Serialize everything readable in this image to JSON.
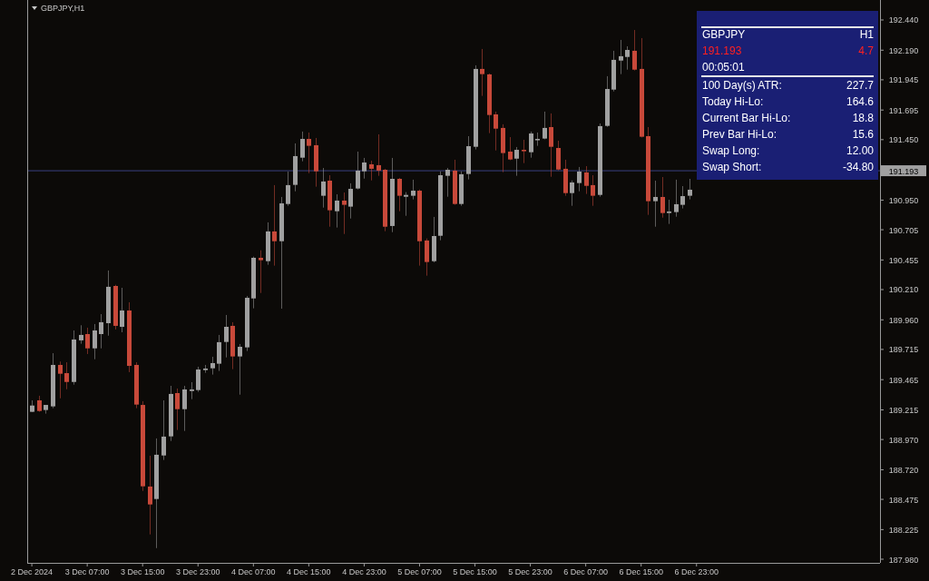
{
  "chart_data": {
    "type": "candlestick",
    "title": "GBPJPY,H1",
    "x": [
      "2024-12-02T23:00",
      "2024-12-03T00:00",
      "2024-12-03T01:00",
      "2024-12-03T02:00",
      "2024-12-03T03:00",
      "2024-12-03T04:00",
      "2024-12-03T05:00",
      "2024-12-03T06:00",
      "2024-12-03T07:00",
      "2024-12-03T08:00",
      "2024-12-03T09:00",
      "2024-12-03T10:00",
      "2024-12-03T11:00",
      "2024-12-03T12:00",
      "2024-12-03T13:00",
      "2024-12-03T14:00",
      "2024-12-03T15:00",
      "2024-12-03T16:00",
      "2024-12-03T17:00",
      "2024-12-03T18:00",
      "2024-12-03T19:00",
      "2024-12-03T20:00",
      "2024-12-03T21:00",
      "2024-12-03T22:00",
      "2024-12-03T23:00",
      "2024-12-04T00:00",
      "2024-12-04T01:00",
      "2024-12-04T02:00",
      "2024-12-04T03:00",
      "2024-12-04T04:00",
      "2024-12-04T05:00",
      "2024-12-04T06:00",
      "2024-12-04T07:00",
      "2024-12-04T08:00",
      "2024-12-04T09:00",
      "2024-12-04T10:00",
      "2024-12-04T11:00",
      "2024-12-04T12:00",
      "2024-12-04T13:00",
      "2024-12-04T14:00",
      "2024-12-04T15:00",
      "2024-12-04T16:00",
      "2024-12-04T17:00",
      "2024-12-04T18:00",
      "2024-12-04T19:00",
      "2024-12-04T20:00",
      "2024-12-04T21:00",
      "2024-12-04T22:00",
      "2024-12-04T23:00",
      "2024-12-05T00:00",
      "2024-12-05T01:00",
      "2024-12-05T02:00",
      "2024-12-05T03:00",
      "2024-12-05T04:00",
      "2024-12-05T05:00",
      "2024-12-05T06:00",
      "2024-12-05T07:00",
      "2024-12-05T08:00",
      "2024-12-05T09:00",
      "2024-12-05T10:00",
      "2024-12-05T11:00",
      "2024-12-05T12:00",
      "2024-12-05T13:00",
      "2024-12-05T14:00",
      "2024-12-05T15:00",
      "2024-12-05T16:00",
      "2024-12-05T17:00",
      "2024-12-05T18:00",
      "2024-12-05T19:00",
      "2024-12-05T20:00",
      "2024-12-05T21:00",
      "2024-12-05T22:00",
      "2024-12-05T23:00",
      "2024-12-06T00:00",
      "2024-12-06T01:00",
      "2024-12-06T02:00",
      "2024-12-06T03:00",
      "2024-12-06T04:00",
      "2024-12-06T05:00",
      "2024-12-06T06:00",
      "2024-12-06T07:00",
      "2024-12-06T08:00",
      "2024-12-06T09:00",
      "2024-12-06T10:00",
      "2024-12-06T11:00",
      "2024-12-06T12:00",
      "2024-12-06T13:00",
      "2024-12-06T14:00",
      "2024-12-06T15:00",
      "2024-12-06T16:00",
      "2024-12-06T17:00",
      "2024-12-06T18:00",
      "2024-12-06T19:00",
      "2024-12-06T20:00",
      "2024-12-06T21:00",
      "2024-12-06T22:00"
    ],
    "ohlc": [
      [
        189.199,
        189.294,
        189.196,
        189.251
      ],
      [
        189.294,
        189.332,
        189.199,
        189.206
      ],
      [
        189.214,
        189.256,
        189.184,
        189.256
      ],
      [
        189.244,
        189.684,
        189.229,
        189.587
      ],
      [
        189.587,
        189.615,
        189.311,
        189.514
      ],
      [
        189.519,
        189.609,
        189.386,
        189.446
      ],
      [
        189.446,
        189.872,
        189.424,
        189.797
      ],
      [
        189.79,
        189.915,
        189.762,
        189.835
      ],
      [
        189.842,
        189.895,
        189.677,
        189.724
      ],
      [
        189.724,
        189.925,
        189.634,
        189.872
      ],
      [
        189.842,
        190.007,
        189.724,
        189.94
      ],
      [
        189.932,
        190.368,
        189.829,
        190.233
      ],
      [
        190.24,
        190.25,
        189.88,
        189.91
      ],
      [
        189.902,
        190.225,
        189.857,
        190.037
      ],
      [
        190.037,
        190.105,
        189.527,
        189.579
      ],
      [
        189.587,
        189.609,
        189.229,
        189.259
      ],
      [
        189.256,
        189.287,
        188.545,
        188.583
      ],
      [
        188.581,
        188.836,
        188.185,
        188.433
      ],
      [
        188.478,
        188.979,
        188.072,
        188.844
      ],
      [
        188.838,
        189.294,
        188.801,
        188.994
      ],
      [
        188.996,
        189.414,
        188.958,
        189.347
      ],
      [
        189.354,
        189.392,
        189.049,
        189.221
      ],
      [
        189.221,
        189.414,
        189.041,
        189.384
      ],
      [
        189.371,
        189.444,
        189.304,
        189.384
      ],
      [
        189.379,
        189.572,
        189.364,
        189.549
      ],
      [
        189.544,
        189.587,
        189.522,
        189.557
      ],
      [
        189.559,
        189.654,
        189.507,
        189.602
      ],
      [
        189.597,
        189.835,
        189.537,
        189.775
      ],
      [
        189.777,
        190.0,
        189.649,
        189.902
      ],
      [
        189.91,
        189.94,
        189.552,
        189.657
      ],
      [
        189.657,
        189.76,
        189.341,
        189.737
      ],
      [
        189.732,
        190.157,
        189.702,
        190.142
      ],
      [
        190.137,
        190.483,
        190.055,
        190.473
      ],
      [
        190.473,
        190.535,
        190.182,
        190.453
      ],
      [
        190.445,
        190.766,
        190.415,
        190.691
      ],
      [
        190.691,
        191.074,
        190.408,
        190.61
      ],
      [
        190.61,
        190.976,
        190.052,
        190.923
      ],
      [
        190.918,
        191.186,
        190.903,
        191.074
      ],
      [
        191.076,
        191.419,
        191.023,
        191.314
      ],
      [
        191.301,
        191.517,
        191.271,
        191.456
      ],
      [
        191.456,
        191.509,
        191.173,
        191.399
      ],
      [
        191.404,
        191.464,
        191.061,
        191.188
      ],
      [
        190.986,
        191.216,
        190.888,
        191.104
      ],
      [
        191.111,
        191.156,
        190.73,
        190.866
      ],
      [
        190.858,
        190.998,
        190.723,
        190.946
      ],
      [
        190.946,
        191.013,
        190.67,
        190.911
      ],
      [
        190.896,
        191.089,
        190.798,
        191.043
      ],
      [
        191.046,
        191.351,
        191.038,
        191.194
      ],
      [
        191.188,
        191.299,
        191.128,
        191.261
      ],
      [
        191.246,
        191.276,
        191.113,
        191.209
      ],
      [
        191.239,
        191.494,
        191.151,
        191.194
      ],
      [
        191.201,
        191.209,
        190.693,
        190.73
      ],
      [
        190.736,
        191.299,
        190.685,
        191.126
      ],
      [
        191.126,
        191.134,
        190.858,
        190.986
      ],
      [
        190.978,
        191.016,
        190.82,
        190.993
      ],
      [
        190.986,
        191.119,
        190.956,
        191.028
      ],
      [
        191.028,
        191.038,
        190.408,
        190.61
      ],
      [
        190.616,
        190.633,
        190.325,
        190.438
      ],
      [
        190.445,
        190.811,
        190.435,
        190.653
      ],
      [
        190.655,
        191.188,
        190.618,
        191.156
      ],
      [
        191.151,
        191.216,
        190.978,
        191.201
      ],
      [
        191.194,
        191.284,
        190.911,
        190.918
      ],
      [
        190.918,
        191.188,
        190.903,
        191.164
      ],
      [
        191.166,
        191.479,
        191.121,
        191.396
      ],
      [
        191.391,
        192.065,
        191.369,
        192.035
      ],
      [
        192.035,
        192.2,
        191.812,
        191.992
      ],
      [
        191.99,
        191.997,
        191.504,
        191.654
      ],
      [
        191.659,
        191.682,
        191.361,
        191.541
      ],
      [
        191.547,
        191.577,
        191.181,
        191.339
      ],
      [
        191.351,
        191.471,
        191.28,
        191.286
      ],
      [
        191.293,
        191.389,
        191.151,
        191.366
      ],
      [
        191.366,
        191.449,
        191.256,
        191.354
      ],
      [
        191.346,
        191.517,
        191.301,
        191.501
      ],
      [
        191.451,
        191.509,
        191.399,
        191.456
      ],
      [
        191.459,
        191.682,
        191.453,
        191.547
      ],
      [
        191.554,
        191.667,
        191.143,
        191.391
      ],
      [
        191.381,
        191.441,
        191.196,
        191.203
      ],
      [
        191.209,
        191.284,
        190.986,
        191.008
      ],
      [
        191.008,
        191.113,
        190.903,
        191.096
      ],
      [
        191.091,
        191.224,
        191.023,
        191.186
      ],
      [
        191.179,
        191.231,
        191.001,
        191.068
      ],
      [
        191.074,
        191.156,
        190.903,
        190.986
      ],
      [
        190.993,
        191.584,
        190.978,
        191.562
      ],
      [
        191.564,
        191.975,
        191.556,
        191.869
      ],
      [
        191.864,
        192.185,
        191.849,
        192.11
      ],
      [
        192.104,
        192.275,
        191.992,
        192.14
      ],
      [
        192.134,
        192.222,
        192.029,
        192.192
      ],
      [
        192.185,
        192.357,
        192.022,
        192.029
      ],
      [
        192.035,
        192.29,
        191.468,
        191.474
      ],
      [
        191.479,
        191.554,
        190.828,
        190.941
      ],
      [
        190.941,
        191.111,
        190.73,
        190.976
      ],
      [
        190.976,
        191.141,
        190.805,
        190.843
      ],
      [
        190.843,
        190.953,
        190.753,
        190.856
      ],
      [
        190.851,
        191.119,
        190.813,
        190.916
      ],
      [
        190.911,
        191.066,
        190.881,
        190.983
      ],
      [
        190.986,
        191.126,
        190.956,
        191.036
      ]
    ],
    "colors": [
      "#a0a0a0",
      "#c8493a",
      "#a0a0a0",
      "#a0a0a0",
      "#c8493a",
      "#c8493a",
      "#a0a0a0",
      "#a0a0a0",
      "#c8493a",
      "#a0a0a0",
      "#a0a0a0",
      "#a0a0a0",
      "#c8493a",
      "#a0a0a0",
      "#c8493a",
      "#c8493a",
      "#c8493a",
      "#c8493a",
      "#a0a0a0",
      "#a0a0a0",
      "#a0a0a0",
      "#c8493a",
      "#a0a0a0",
      "#a0a0a0",
      "#a0a0a0",
      "#a0a0a0",
      "#a0a0a0",
      "#a0a0a0",
      "#a0a0a0",
      "#c8493a",
      "#a0a0a0",
      "#a0a0a0",
      "#a0a0a0",
      "#c8493a",
      "#a0a0a0",
      "#c8493a",
      "#a0a0a0",
      "#a0a0a0",
      "#a0a0a0",
      "#a0a0a0",
      "#c8493a",
      "#c8493a",
      "#a0a0a0",
      "#c8493a",
      "#a0a0a0",
      "#c8493a",
      "#a0a0a0",
      "#a0a0a0",
      "#a0a0a0",
      "#c8493a",
      "#c8493a",
      "#c8493a",
      "#a0a0a0",
      "#c8493a",
      "#a0a0a0",
      "#a0a0a0",
      "#c8493a",
      "#c8493a",
      "#a0a0a0",
      "#a0a0a0",
      "#a0a0a0",
      "#c8493a",
      "#a0a0a0",
      "#a0a0a0",
      "#a0a0a0",
      "#c8493a",
      "#c8493a",
      "#c8493a",
      "#c8493a",
      "#c8493a",
      "#a0a0a0",
      "#c8493a",
      "#a0a0a0",
      "#a0a0a0",
      "#a0a0a0",
      "#c8493a",
      "#c8493a",
      "#c8493a",
      "#a0a0a0",
      "#a0a0a0",
      "#c8493a",
      "#c8493a",
      "#a0a0a0",
      "#a0a0a0",
      "#a0a0a0",
      "#a0a0a0",
      "#a0a0a0",
      "#c8493a",
      "#c8493a",
      "#c8493a",
      "#a0a0a0",
      "#c8493a",
      "#a0a0a0",
      "#a0a0a0",
      "#a0a0a0",
      "#a0a0a0"
    ],
    "xlim": [
      "2024-12-02T22:20",
      "2024-12-08T01:30"
    ],
    "xticks": [
      {
        "value": "2024-12-02T23:00",
        "label": "2 Dec 2024"
      },
      {
        "value": "2024-12-03T07:00",
        "label": "3 Dec 07:00"
      },
      {
        "value": "2024-12-03T15:00",
        "label": "3 Dec 15:00"
      },
      {
        "value": "2024-12-03T23:00",
        "label": "3 Dec 23:00"
      },
      {
        "value": "2024-12-04T07:00",
        "label": "4 Dec 07:00"
      },
      {
        "value": "2024-12-04T15:00",
        "label": "4 Dec 15:00"
      },
      {
        "value": "2024-12-04T23:00",
        "label": "4 Dec 23:00"
      },
      {
        "value": "2024-12-05T07:00",
        "label": "5 Dec 07:00"
      },
      {
        "value": "2024-12-05T15:00",
        "label": "5 Dec 15:00"
      },
      {
        "value": "2024-12-05T23:00",
        "label": "5 Dec 23:00"
      },
      {
        "value": "2024-12-06T07:00",
        "label": "6 Dec 07:00"
      },
      {
        "value": "2024-12-06T15:00",
        "label": "6 Dec 15:00"
      },
      {
        "value": "2024-12-06T23:00",
        "label": "6 Dec 23:00"
      }
    ],
    "ylim": [
      187.95,
      192.605
    ],
    "yticks": [
      {
        "value": 192.44,
        "label": "192.440"
      },
      {
        "value": 192.19,
        "label": "192.190"
      },
      191.945,
      191.695,
      {
        "value": 191.45,
        "label": "191.450"
      },
      {
        "value": 190.95,
        "label": "190.950"
      },
      190.705,
      190.455,
      {
        "value": 190.21,
        "label": "190.210"
      },
      {
        "value": 189.96,
        "label": "189.960"
      },
      189.715,
      189.465,
      189.215,
      {
        "value": 188.97,
        "label": "188.970"
      },
      {
        "value": 188.72,
        "label": "188.720"
      },
      188.475,
      188.225,
      {
        "value": 187.98,
        "label": "187.980"
      }
    ],
    "ref_lines": [
      {
        "axis": "y",
        "value": 191.193,
        "label": "191.193",
        "color": "#3a4282"
      }
    ],
    "annotations": [
      "GBPJPY",
      "H1",
      "191.193",
      "4.7",
      "00:05:01",
      "100 Day(s) ATR:",
      "227.7",
      "Today Hi-Lo:",
      "164.6",
      "Current Bar Hi-Lo:",
      "18.8",
      "Prev Bar Hi-Lo:",
      "15.6",
      "Swap Long:",
      "12.00",
      "Swap Short:",
      "-34.80"
    ]
  }
}
